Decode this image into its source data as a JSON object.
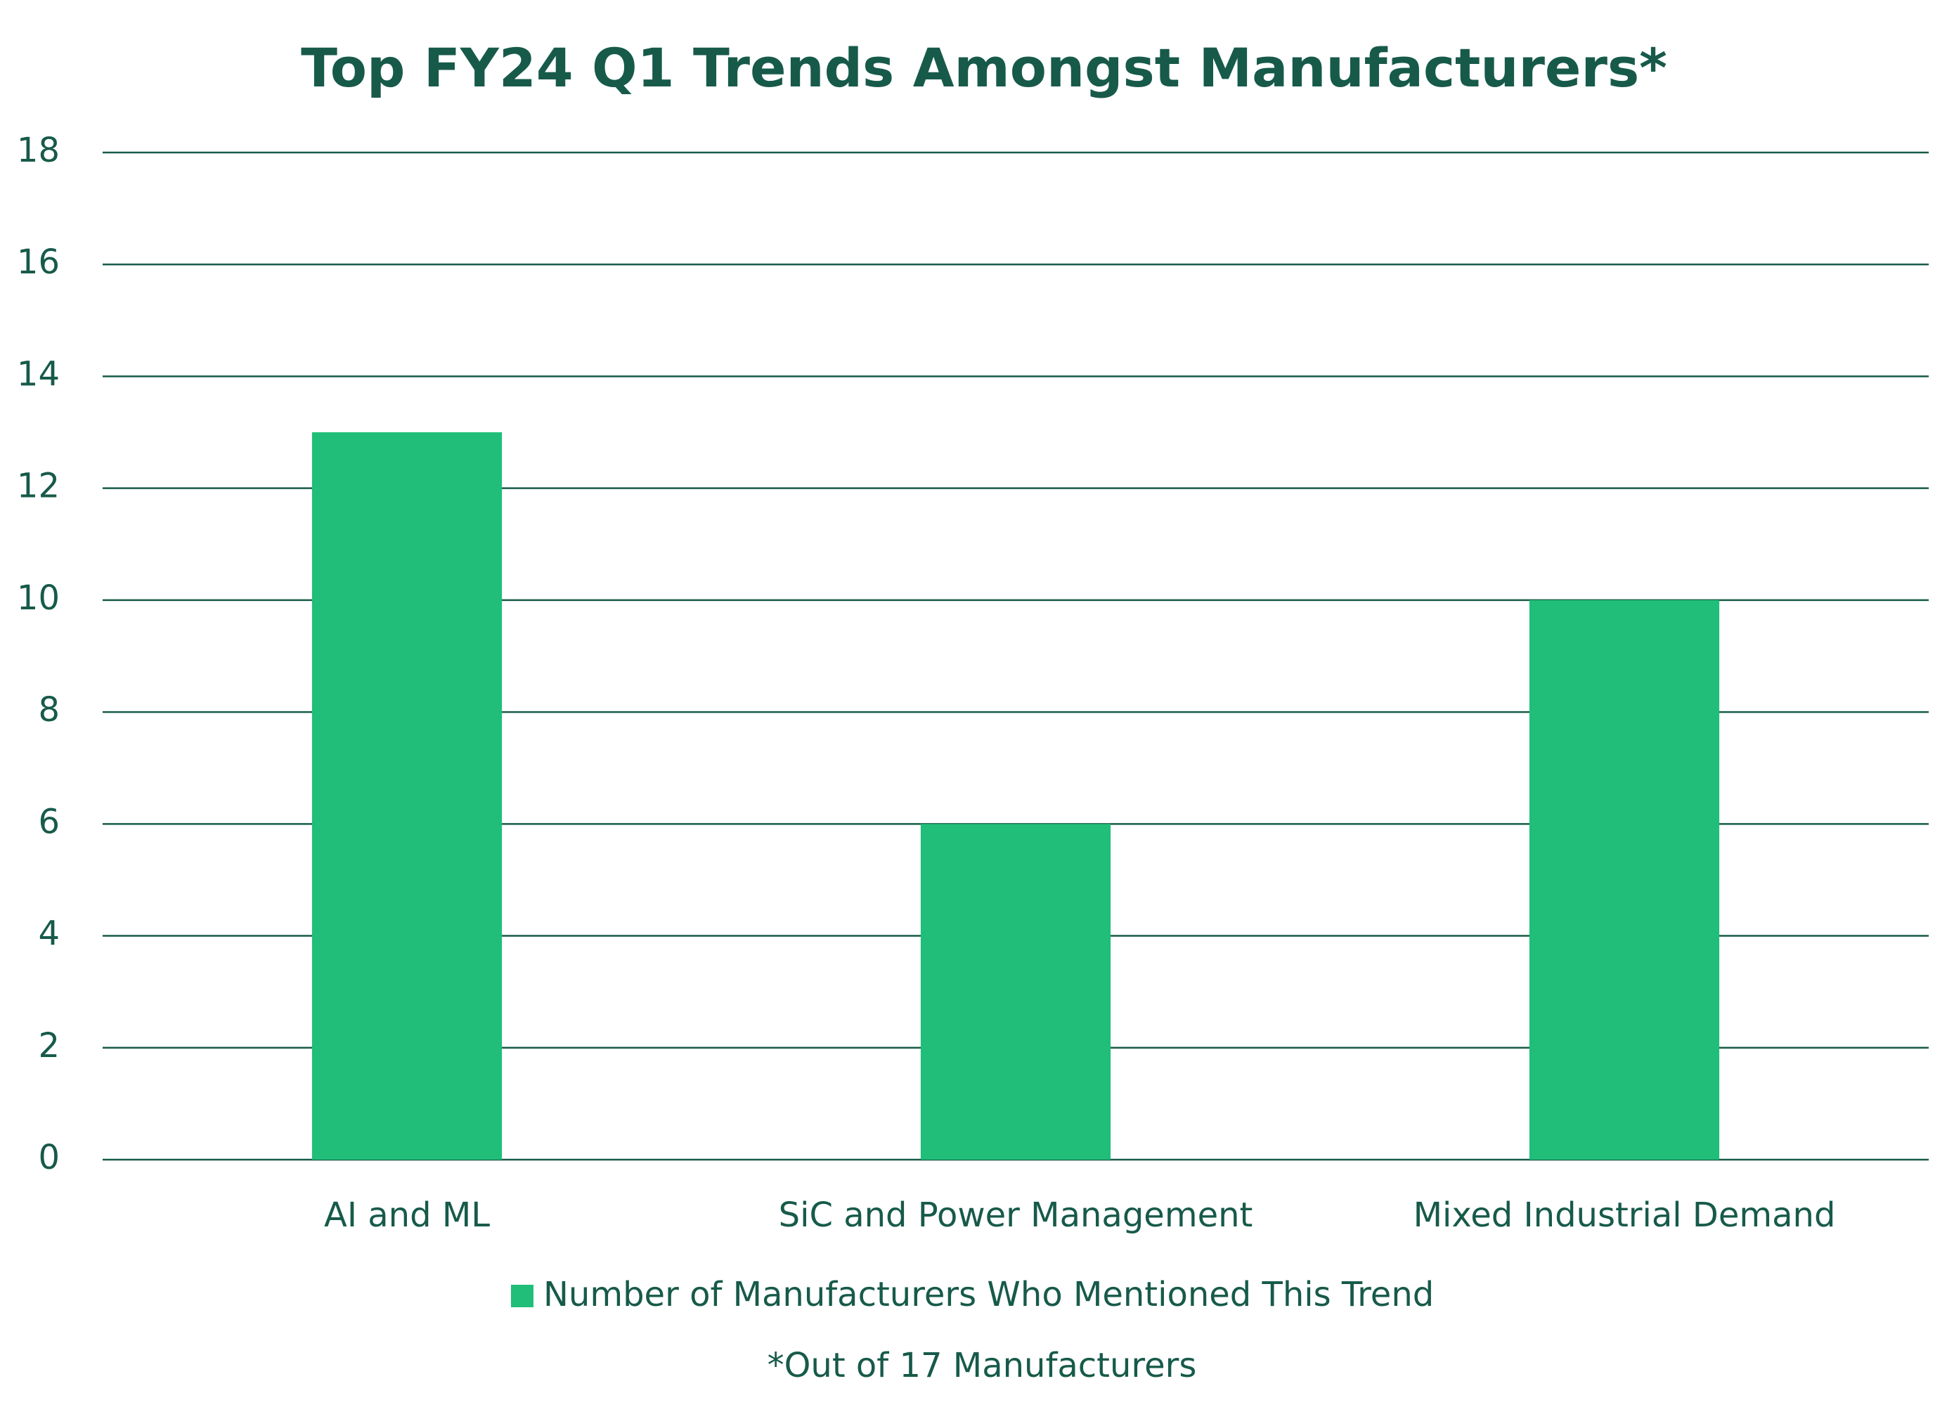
{
  "chart_data": {
    "type": "bar",
    "title": "Top FY24 Q1 Trends Amongst Manufacturers*",
    "categories": [
      "AI and ML",
      "SiC and Power Management",
      "Mixed Industrial Demand"
    ],
    "series": [
      {
        "name": "Number of Manufacturers Who Mentioned This Trend",
        "color": "#20be78",
        "values": [
          13,
          6,
          10
        ]
      }
    ],
    "ylim": [
      0,
      18
    ],
    "yticks": [
      0,
      2,
      4,
      6,
      8,
      10,
      12,
      14,
      16,
      18
    ],
    "grid": true,
    "note": "*Out of 17 Manufacturers"
  }
}
